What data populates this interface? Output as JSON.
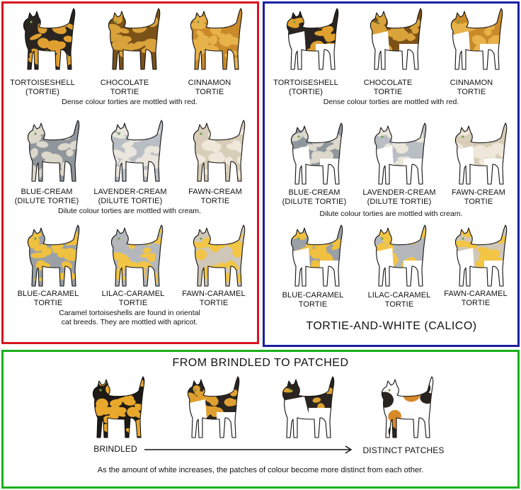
{
  "colors": {
    "left_border": "#d8141e",
    "right_border": "#1b1fa0",
    "bottom_border": "#19b01c"
  },
  "left_panel": {
    "row1": {
      "labels": [
        "TORTOISESHELL\n(TORTIE)",
        "CHOCOLATE\nTORTIE",
        "CINNAMON\nTORTIE"
      ],
      "caption": "Dense colour torties are mottled with red."
    },
    "row2": {
      "labels": [
        "BLUE-CREAM\n(DILUTE TORTIE)",
        "LAVENDER-CREAM\n(DILUTE TORTIE)",
        "FAWN-CREAM\nTORTIE"
      ],
      "caption": "Dilute colour torties are mottled with cream."
    },
    "row3": {
      "labels": [
        "BLUE-CARAMEL\nTORTIE",
        "LILAC-CARAMEL\nTORTIE",
        "FAWN-CARAMEL\nTORTIE"
      ],
      "caption": "Caramel tortoiseshells are found in oriental\ncat breeds.  They are mottled with apricot."
    }
  },
  "right_panel": {
    "row1": {
      "labels": [
        "TORTOISESHELL\n(TORTIE)",
        "CHOCOLATE\nTORTIE",
        "CINNAMON\nTORTIE"
      ],
      "caption": "Dense colour torties are mottled with red."
    },
    "row2": {
      "labels": [
        "BLUE-CREAM\n(DILUTE TORTIE)",
        "LAVENDER-CREAM\n(DILUTE TORTIE)",
        "FAWN-CREAM\nTORTIE"
      ],
      "caption": "Dilute colour torties are mottled with cream."
    },
    "row3": {
      "labels": [
        "BLUE-CARAMEL\nTORTIE",
        "LILAC-CARAMEL\nTORTIE",
        "FAWN-CARAMEL\nTORTIE"
      ]
    },
    "title": "TORTIE-AND-WHITE  (CALICO)"
  },
  "bottom_panel": {
    "title": "FROM BRINDLED TO PATCHED",
    "start_label": "BRINDLED",
    "end_label": "DISTINCT PATCHES",
    "caption": "As the amount of white increases, the patches of colour become more distinct from each other."
  },
  "cat_palettes": {
    "tortie": {
      "base": "#2a2520",
      "patch": "#e0a030"
    },
    "chocolate": {
      "base": "#7a5218",
      "patch": "#d9a23a"
    },
    "cinnamon": {
      "base": "#c98a2a",
      "patch": "#e7b24a"
    },
    "blue_cream": {
      "base": "#8f969c",
      "patch": "#dcd8cc"
    },
    "lavender_cream": {
      "base": "#b9bec4",
      "patch": "#ebe6dc"
    },
    "fawn_cream": {
      "base": "#d8cdb8",
      "patch": "#efe8da"
    },
    "blue_caramel": {
      "base": "#9aa0a6",
      "patch": "#f0c040"
    },
    "lilac_caramel": {
      "base": "#b4b8bc",
      "patch": "#f2c545"
    },
    "fawn_caramel": {
      "base": "#cfc7b8",
      "patch": "#f2c545"
    },
    "brindled": {
      "base": "#1e1a16",
      "patch": "#e8a82c"
    },
    "calico_black": {
      "base": "#2a2520",
      "patch": "#d8892a"
    }
  }
}
